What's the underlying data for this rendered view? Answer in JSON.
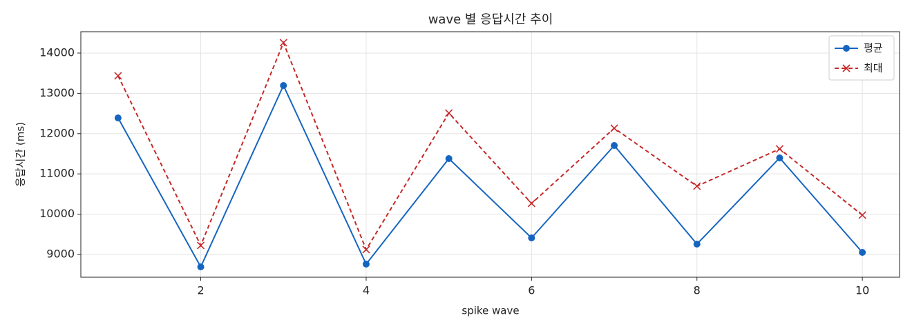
{
  "chart_data": {
    "type": "line",
    "title": "wave 별 응답시간 추이",
    "x_label": "spike wave",
    "y_label": "응답시간 (ms)",
    "x": [
      1,
      2,
      3,
      4,
      5,
      6,
      7,
      8,
      9,
      10
    ],
    "series": [
      {
        "name": "평균",
        "color": "#1565c0",
        "marker": "o",
        "linestyle": "solid",
        "values": [
          12390,
          8692,
          13195,
          8760,
          11380,
          9411,
          11705,
          9257,
          11397,
          9051
        ]
      },
      {
        "name": "최대",
        "color": "#c62828",
        "marker": "x",
        "linestyle": "dashed",
        "values": [
          13435,
          9223,
          14257,
          9120,
          12510,
          10267,
          12134,
          10695,
          11620,
          9976
        ]
      }
    ],
    "xlim": [
      0.55,
      10.45
    ],
    "xticks": [
      2,
      4,
      6,
      8,
      10
    ],
    "ylim": [
      8435,
      14530
    ],
    "yticks": [
      9000,
      10000,
      11000,
      12000,
      13000,
      14000
    ],
    "grid": true,
    "legend": "upper right"
  }
}
